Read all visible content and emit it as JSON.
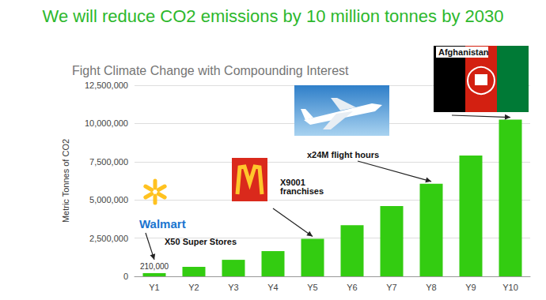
{
  "chart_data": {
    "type": "bar",
    "title": "We will reduce CO2 emissions by 10 million tonnes by 2030",
    "subtitle": "Fight Climate Change with Compounding Interest",
    "y_label": "Metric Tonnes of CO2",
    "categories": [
      "Y1",
      "Y2",
      "Y3",
      "Y4",
      "Y5",
      "Y6",
      "Y7",
      "Y8",
      "Y9",
      "Y10"
    ],
    "values": [
      210000,
      620000,
      1080000,
      1650000,
      2450000,
      3350000,
      4600000,
      6050000,
      7900000,
      10250000
    ],
    "value_labels": [
      "210,000",
      null,
      null,
      null,
      null,
      null,
      null,
      null,
      null,
      null
    ],
    "data_labels": true,
    "color": "#33cc11",
    "ylim": [
      0,
      12500000
    ],
    "yticks": [
      0,
      {
        "value": 2500000,
        "label": "2,500,000"
      },
      {
        "value": 5000000,
        "label": "5,000,000"
      },
      {
        "value": 7500000,
        "label": "7,500,000"
      },
      {
        "value": 10000000,
        "label": "10,000,000"
      },
      {
        "value": 12500000,
        "label": "12,500,000"
      }
    ],
    "grid": true,
    "annotations": [
      {
        "text": "Walmart",
        "target": "Y1"
      },
      {
        "text": "X50 Super Stores",
        "target": "Y1"
      },
      {
        "text": "X9001 franchises",
        "target": "Y5"
      },
      {
        "text": "x24M flight hours",
        "target": "Y8"
      },
      {
        "text": "Afghanistan",
        "target": "Y10"
      }
    ]
  }
}
